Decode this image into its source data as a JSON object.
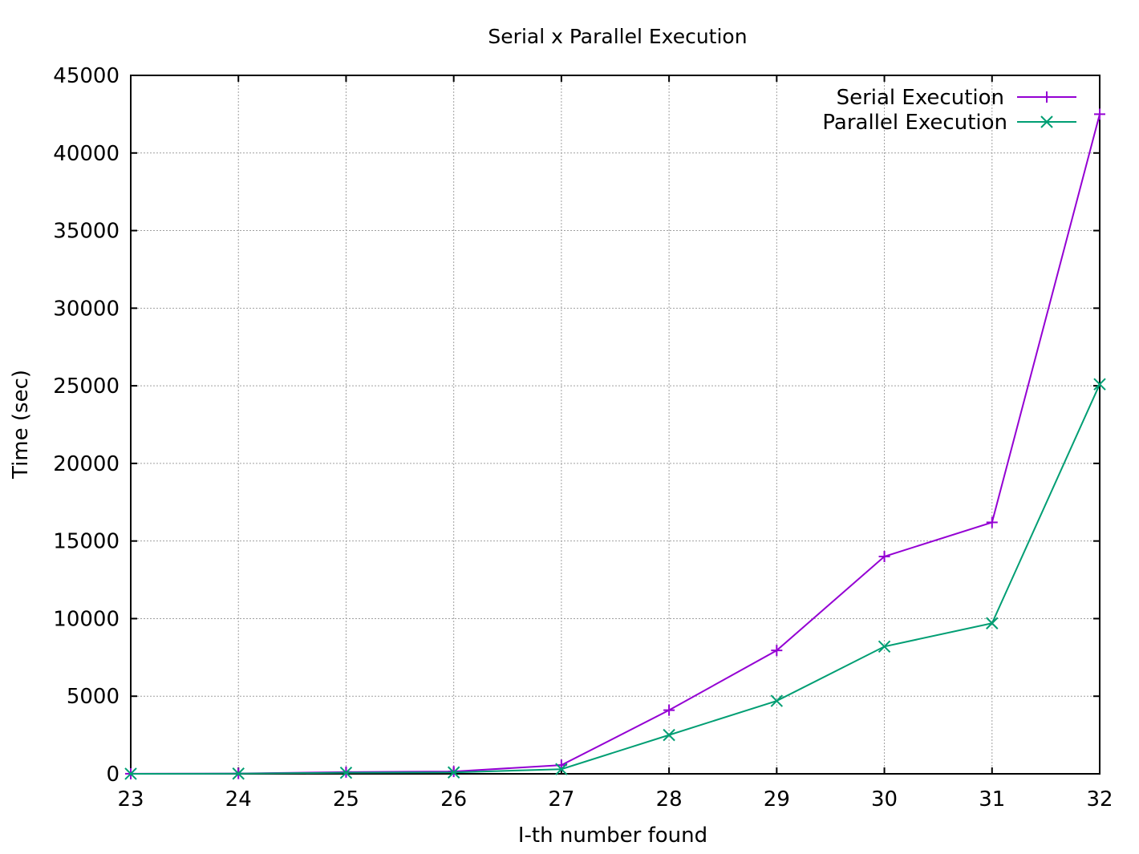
{
  "chart_data": {
    "type": "line",
    "title": "Serial x Parallel Execution",
    "xlabel": "I-th number found",
    "ylabel": "Time (sec)",
    "xlim": [
      23,
      32
    ],
    "ylim": [
      0,
      45000
    ],
    "x_ticks": [
      "23",
      "24",
      "25",
      "26",
      "27",
      "28",
      "29",
      "30",
      "31",
      "32"
    ],
    "y_ticks": [
      "0",
      "5000",
      "10000",
      "15000",
      "20000",
      "25000",
      "30000",
      "35000",
      "40000",
      "45000"
    ],
    "grid": true,
    "legend_position": "top-right",
    "x": [
      23,
      24,
      25,
      26,
      27,
      28,
      29,
      30,
      31,
      32
    ],
    "series": [
      {
        "name": "Serial Execution",
        "color": "#9400d3",
        "marker": "plus",
        "values": [
          5,
          20,
          110,
          150,
          560,
          4100,
          7950,
          14000,
          16200,
          42500
        ]
      },
      {
        "name": "Parallel Execution",
        "color": "#009e73",
        "marker": "cross",
        "values": [
          3,
          12,
          70,
          90,
          300,
          2500,
          4700,
          8200,
          9700,
          25100
        ]
      }
    ]
  }
}
